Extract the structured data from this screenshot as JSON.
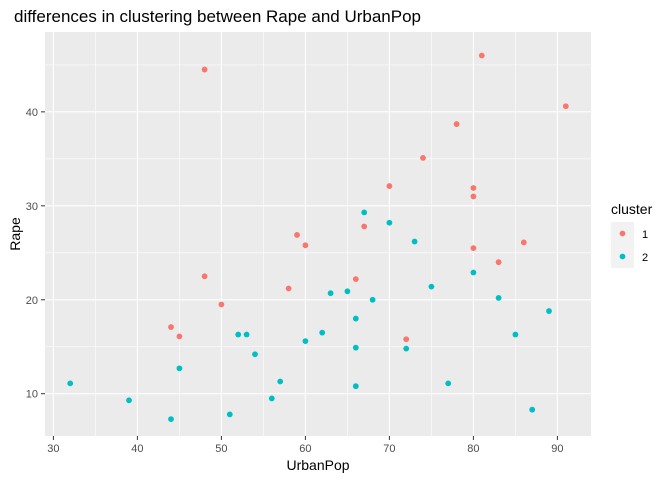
{
  "chart_data": {
    "type": "scatter",
    "title": "differences in clustering between Rape and UrbanPop",
    "xlabel": "UrbanPop",
    "ylabel": "Rape",
    "xlim": [
      29,
      94
    ],
    "ylim": [
      5.5,
      48.5
    ],
    "xticks": [
      30,
      40,
      50,
      60,
      70,
      80,
      90
    ],
    "yticks": [
      10,
      20,
      30,
      40
    ],
    "grid": true,
    "legend": {
      "title": "cluster",
      "position": "right"
    },
    "series": [
      {
        "name": "1",
        "color": "#F8766D",
        "points": [
          [
            81,
            46.0
          ],
          [
            48,
            44.5
          ],
          [
            91,
            40.6
          ],
          [
            78,
            38.7
          ],
          [
            74,
            35.1
          ],
          [
            70,
            32.1
          ],
          [
            80,
            31.9
          ],
          [
            80,
            31.0
          ],
          [
            67,
            27.8
          ],
          [
            59,
            26.9
          ],
          [
            86,
            26.1
          ],
          [
            60,
            25.8
          ],
          [
            80,
            25.5
          ],
          [
            83,
            24.0
          ],
          [
            48,
            22.5
          ],
          [
            66,
            22.2
          ],
          [
            58,
            21.2
          ],
          [
            50,
            19.5
          ],
          [
            44,
            17.1
          ],
          [
            45,
            16.1
          ],
          [
            72,
            15.8
          ]
        ]
      },
      {
        "name": "2",
        "color": "#00BFC4",
        "points": [
          [
            67,
            29.3
          ],
          [
            70,
            28.2
          ],
          [
            73,
            26.2
          ],
          [
            80,
            22.9
          ],
          [
            75,
            21.4
          ],
          [
            63,
            20.7
          ],
          [
            65,
            20.9
          ],
          [
            68,
            20.0
          ],
          [
            83,
            20.2
          ],
          [
            89,
            18.8
          ],
          [
            66,
            18.0
          ],
          [
            62,
            16.5
          ],
          [
            52,
            16.3
          ],
          [
            53,
            16.3
          ],
          [
            85,
            16.3
          ],
          [
            60,
            15.6
          ],
          [
            66,
            14.9
          ],
          [
            72,
            14.8
          ],
          [
            54,
            14.2
          ],
          [
            45,
            12.7
          ],
          [
            57,
            11.3
          ],
          [
            32,
            11.1
          ],
          [
            77,
            11.1
          ],
          [
            66,
            10.8
          ],
          [
            56,
            9.5
          ],
          [
            39,
            9.3
          ],
          [
            87,
            8.3
          ],
          [
            51,
            7.8
          ],
          [
            44,
            7.3
          ]
        ]
      }
    ]
  }
}
